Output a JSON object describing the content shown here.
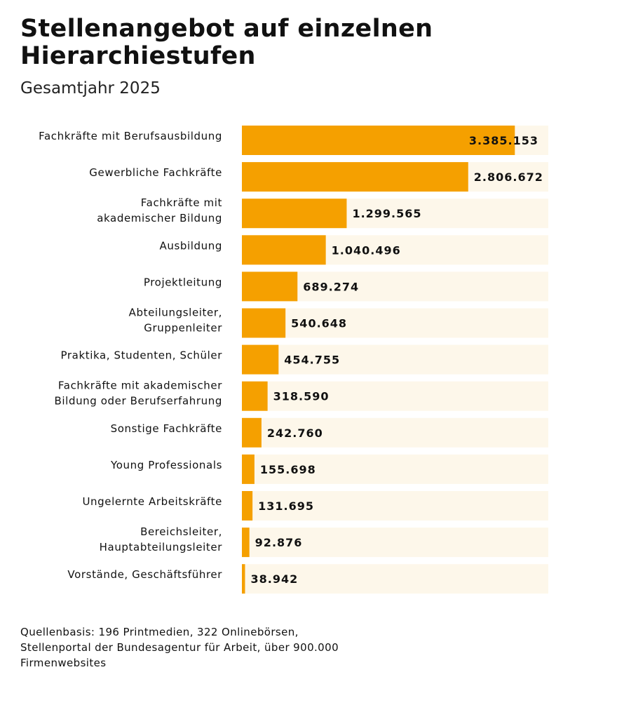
{
  "chart_data": {
    "type": "bar",
    "orientation": "horizontal",
    "title": "Stellenangebot auf einzelnen Hierarchiestufen",
    "subtitle": "Gesamtjahr 2025",
    "categories": [
      "Fachkräfte mit Berufsausbildung",
      "Gewerbliche Fachkräfte",
      "Fachkräfte mit\nakademischer Bildung",
      "Ausbildung",
      "Projektleitung",
      "Abteilungsleiter,\nGruppenleiter",
      "Praktika, Studenten, Schüler",
      "Fachkräfte mit akademischer\nBildung oder Berufserfahrung",
      "Sonstige Fachkräfte",
      "Young Professionals",
      "Ungelernte Arbeitskräfte",
      "Bereichsleiter,\nHauptabteilungsleiter",
      "Vorstände, Geschäftsführer"
    ],
    "values": [
      3385153,
      2806672,
      1299565,
      1040496,
      689274,
      540648,
      454755,
      318590,
      242760,
      155698,
      131695,
      92876,
      38942
    ],
    "value_labels": [
      "3.385.153",
      "2.806.672",
      "1.299.565",
      "1.040.496",
      "689.274",
      "540.648",
      "454.755",
      "318.590",
      "242.760",
      "155.698",
      "131.695",
      "92.876",
      "38.942"
    ],
    "xlim": [
      0,
      3800000
    ],
    "grid": false,
    "colors": {
      "bar": "#f5a000",
      "track": "#fdf7ea",
      "text": "#111111"
    }
  },
  "footer": "Quellenbasis: 196 Printmedien, 322 Onlinebörsen, Stellenportal der Bundesagentur für Arbeit, über 900.000 Firmenwebsites"
}
